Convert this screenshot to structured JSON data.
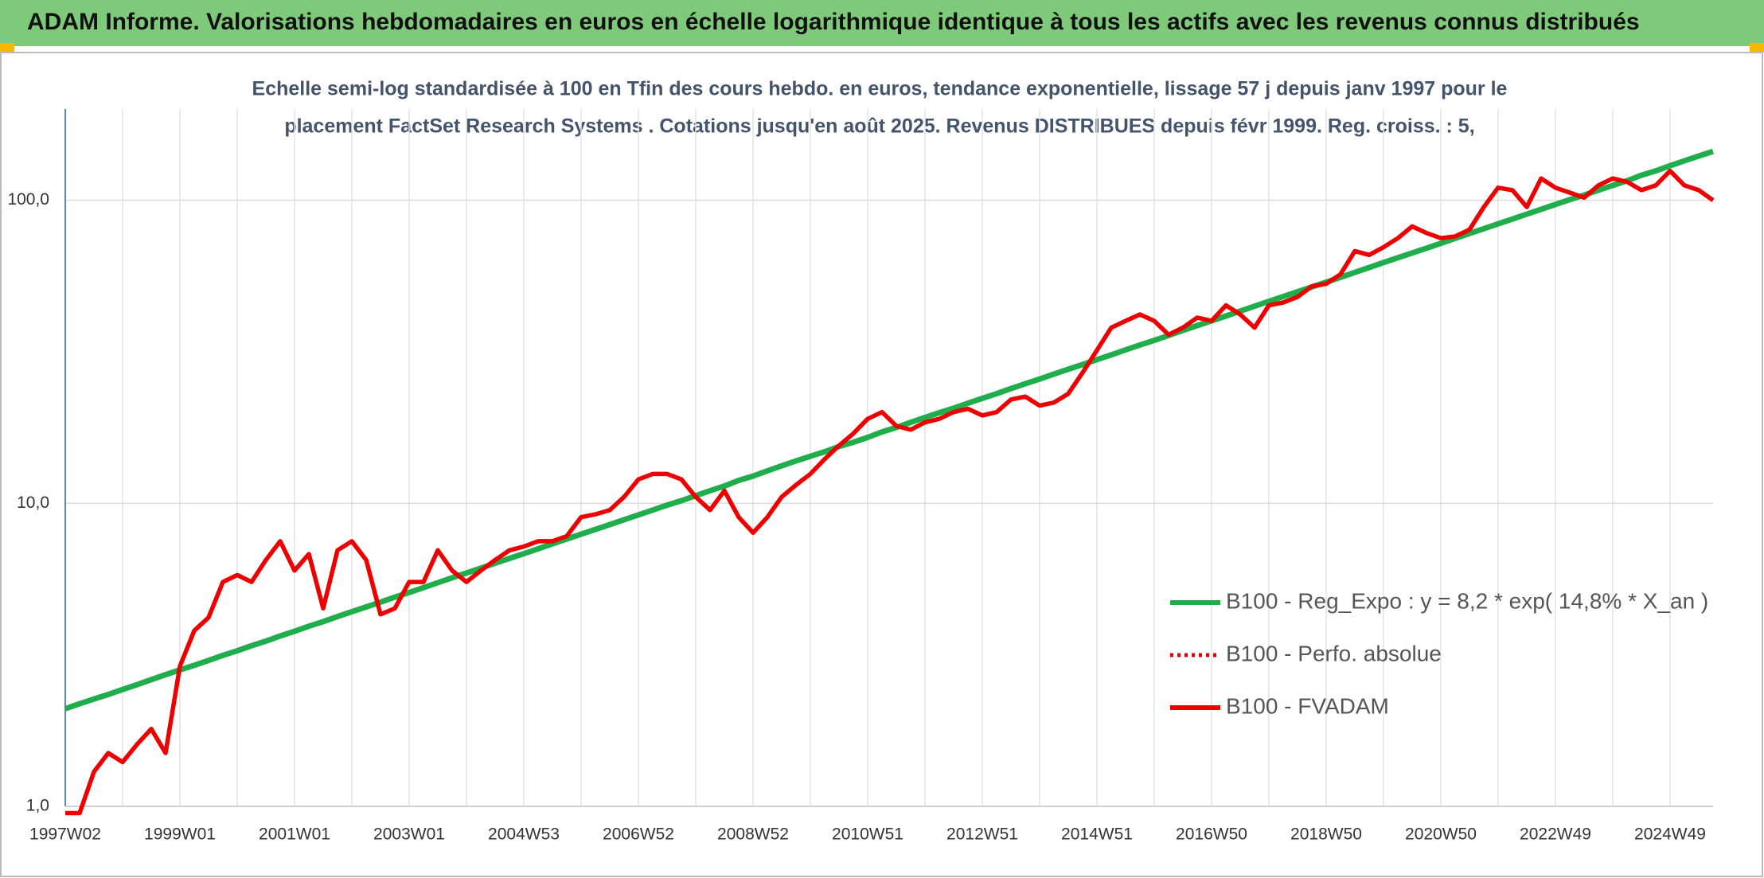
{
  "chart_data": {
    "type": "line",
    "title": "ADAM Informe. Valorisations hebdomadaires en euros en échelle logarithmique identique à tous les actifs avec les revenus connus distribués",
    "subtitle": [
      "Echelle semi-log standardisée à 100 en Tfin des cours hebdo. en euros, tendance exponentielle, lissage 57 j depuis janv 1997 pour le",
      "placement FactSet Research Systems . Cotations jusqu'en août 2025. Revenus DISTRIBUES depuis févr 1999. Reg. croiss. : 5,"
    ],
    "log_scale": true,
    "grid": true,
    "ylim": [
      1,
      200
    ],
    "yticks": [
      {
        "value": 1,
        "label": "1,0"
      },
      {
        "value": 10,
        "label": "10,0"
      },
      {
        "value": 100,
        "label": "100,0"
      }
    ],
    "categories": [
      "1997W02",
      null,
      null,
      null,
      null,
      null,
      null,
      null,
      "1999W01",
      null,
      null,
      null,
      null,
      null,
      null,
      null,
      "2001W01",
      null,
      null,
      null,
      null,
      null,
      null,
      null,
      "2003W01",
      null,
      null,
      null,
      null,
      null,
      null,
      null,
      "2004W53",
      null,
      null,
      null,
      null,
      null,
      null,
      null,
      "2006W52",
      null,
      null,
      null,
      null,
      null,
      null,
      null,
      "2008W52",
      null,
      null,
      null,
      null,
      null,
      null,
      null,
      "2010W51",
      null,
      null,
      null,
      null,
      null,
      null,
      null,
      "2012W51",
      null,
      null,
      null,
      null,
      null,
      null,
      null,
      "2014W51",
      null,
      null,
      null,
      null,
      null,
      null,
      null,
      "2016W50",
      null,
      null,
      null,
      null,
      null,
      null,
      null,
      "2018W50",
      null,
      null,
      null,
      null,
      null,
      null,
      null,
      "2020W50",
      null,
      null,
      null,
      null,
      null,
      null,
      null,
      "2022W49",
      null,
      null,
      null,
      null,
      null,
      null,
      null,
      "2024W49",
      null,
      null,
      null
    ],
    "series": [
      {
        "name": "B100 - Reg_Expo : y = 8,2 * exp( 14,8% *  X_an )",
        "color": "#1fae4b",
        "dash": "solid",
        "values": [
          2.1,
          2.18,
          2.26,
          2.34,
          2.43,
          2.52,
          2.62,
          2.72,
          2.82,
          2.92,
          3.03,
          3.15,
          3.26,
          3.39,
          3.51,
          3.65,
          3.78,
          3.93,
          4.07,
          4.23,
          4.39,
          4.55,
          4.72,
          4.9,
          5.08,
          5.27,
          5.47,
          5.68,
          5.89,
          6.11,
          6.34,
          6.58,
          6.82,
          7.08,
          7.35,
          7.62,
          7.91,
          8.2,
          8.51,
          8.83,
          9.16,
          9.5,
          9.86,
          10.2,
          10.6,
          11.0,
          11.4,
          11.9,
          12.3,
          12.8,
          13.3,
          13.8,
          14.3,
          14.8,
          15.4,
          15.9,
          16.5,
          17.2,
          17.8,
          18.5,
          19.2,
          19.9,
          20.6,
          21.4,
          22.2,
          23.0,
          23.9,
          24.8,
          25.7,
          26.7,
          27.7,
          28.7,
          29.8,
          30.9,
          32.1,
          33.3,
          34.5,
          35.8,
          37.2,
          38.6,
          40.0,
          41.5,
          43.1,
          44.7,
          46.4,
          48.1,
          49.9,
          51.8,
          53.7,
          55.7,
          57.8,
          60.0,
          62.3,
          64.6,
          67.0,
          69.5,
          72.1,
          74.9,
          77.7,
          80.6,
          83.6,
          86.7,
          90.0,
          93.4,
          96.9,
          100.5,
          104,
          108,
          112,
          116,
          121,
          125,
          130,
          135,
          140,
          145
        ]
      },
      {
        "name": "B100 - Perfo. absolue",
        "color": "#e30000",
        "dash": "dotted"
      },
      {
        "name": "B100 - FVADAM",
        "color": "#ee0000",
        "dash": "solid",
        "values": [
          0.95,
          0.95,
          1.3,
          1.5,
          1.4,
          1.6,
          1.8,
          1.5,
          2.9,
          3.8,
          4.2,
          5.5,
          5.8,
          5.5,
          6.5,
          7.5,
          6.0,
          6.8,
          4.5,
          7.0,
          7.5,
          6.5,
          4.3,
          4.5,
          5.5,
          5.5,
          7.0,
          6.0,
          5.5,
          6.0,
          6.5,
          7.0,
          7.2,
          7.5,
          7.5,
          7.8,
          9.0,
          9.2,
          9.5,
          10.5,
          12.0,
          12.5,
          12.5,
          12.0,
          10.5,
          9.5,
          11.0,
          9.0,
          8.0,
          9.0,
          10.5,
          11.5,
          12.5,
          14.0,
          15.5,
          17.0,
          19.0,
          20.0,
          18.0,
          17.5,
          18.5,
          19.0,
          20.0,
          20.5,
          19.5,
          20.0,
          22.0,
          22.5,
          21.0,
          21.5,
          23.0,
          27.0,
          32.0,
          38.0,
          40.0,
          42.0,
          40.0,
          36.0,
          38.0,
          41.0,
          40.0,
          45.0,
          42.0,
          38.0,
          45.0,
          46.0,
          48.0,
          52.0,
          53.0,
          57.0,
          68.0,
          66.0,
          70.0,
          75.0,
          82.0,
          78.0,
          75.0,
          76.0,
          80.0,
          95.0,
          110,
          108,
          95,
          118,
          110,
          106,
          102,
          112,
          118,
          115,
          108,
          112,
          125,
          112,
          108,
          100
        ]
      }
    ]
  }
}
